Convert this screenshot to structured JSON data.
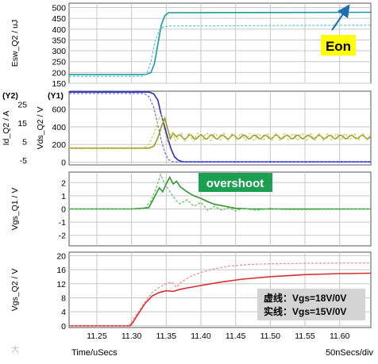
{
  "footer": {
    "x_label": "Time/uSecs",
    "scale": "50nSecs/div",
    "watermark": "大"
  },
  "colors": {
    "grid": "#c8c8c8",
    "teal_solid": "#1a9aa8",
    "teal_dash": "#56c8d0",
    "olive_solid": "#9c9c1e",
    "olive_dash": "#c8c860",
    "blue_solid": "#2b2bd0",
    "blue_dash": "#6a6ae0",
    "green_solid": "#2f9a2f",
    "green_dash": "#5cc05c",
    "red_solid": "#d83030",
    "red_dash": "#ef8a8a",
    "eon_bg": "#ffff00",
    "overshoot_bg": "#1aa050",
    "legend_bg": "#d4d4d4"
  },
  "annotations": {
    "eon": "Eon",
    "overshoot": "overshoot",
    "legend_line1": "虚线：Vgs=18V/0V",
    "legend_line2": "实线：Vgs=15V/0V"
  },
  "chart_data": [
    {
      "type": "line",
      "ylabel": "Esw_Q2 / uJ",
      "ylim": [
        150,
        520
      ],
      "yticks": [
        150,
        200,
        250,
        300,
        350,
        400,
        450,
        500
      ],
      "xlim": [
        11.21,
        11.645
      ],
      "xticks": [
        11.25,
        11.3,
        11.35,
        11.4,
        11.45,
        11.5,
        11.55,
        11.6
      ],
      "grid": true,
      "series": [
        {
          "style": "solid",
          "color": "teal_solid",
          "points": [
            [
              11.21,
              190
            ],
            [
              11.32,
              190
            ],
            [
              11.328,
              200
            ],
            [
              11.333,
              240
            ],
            [
              11.338,
              330
            ],
            [
              11.343,
              420
            ],
            [
              11.348,
              462
            ],
            [
              11.353,
              476
            ],
            [
              11.645,
              478
            ]
          ]
        },
        {
          "style": "dashed",
          "color": "teal_dash",
          "points": [
            [
              11.21,
              182
            ],
            [
              11.315,
              182
            ],
            [
              11.322,
              195
            ],
            [
              11.328,
              250
            ],
            [
              11.334,
              345
            ],
            [
              11.34,
              395
            ],
            [
              11.346,
              410
            ],
            [
              11.355,
              415
            ],
            [
              11.645,
              418
            ]
          ]
        }
      ]
    },
    {
      "type": "line",
      "ylabel_left": "Id_Q2 / A",
      "ylabel_right": "Vds_Q2 / V",
      "axis_tag_left": "(Y2)",
      "axis_tag_right": "(Y1)",
      "y2lim": [
        -7.5,
        32
      ],
      "y2ticks": [
        -5,
        5,
        15,
        25
      ],
      "ylim": [
        -30,
        800
      ],
      "yticks": [
        0,
        200,
        400,
        600
      ],
      "xlim": [
        11.21,
        11.645
      ],
      "xticks": [
        11.25,
        11.3,
        11.35,
        11.4,
        11.45,
        11.5,
        11.55,
        11.6
      ],
      "grid": true,
      "series": [
        {
          "name": "Vds solid",
          "style": "solid",
          "color": "blue_solid",
          "axis": "y1",
          "points": [
            [
              11.21,
              790
            ],
            [
              11.325,
              790
            ],
            [
              11.332,
              770
            ],
            [
              11.338,
              700
            ],
            [
              11.342,
              560
            ],
            [
              11.347,
              420
            ],
            [
              11.352,
              280
            ],
            [
              11.357,
              150
            ],
            [
              11.362,
              60
            ],
            [
              11.368,
              20
            ],
            [
              11.375,
              5
            ],
            [
              11.645,
              5
            ]
          ]
        },
        {
          "name": "Vds dashed",
          "style": "dashed",
          "color": "blue_dash",
          "axis": "y1",
          "points": [
            [
              11.21,
              775
            ],
            [
              11.318,
              775
            ],
            [
              11.325,
              740
            ],
            [
              11.332,
              620
            ],
            [
              11.338,
              420
            ],
            [
              11.343,
              240
            ],
            [
              11.348,
              110
            ],
            [
              11.353,
              30
            ],
            [
              11.36,
              5
            ],
            [
              11.645,
              5
            ]
          ]
        },
        {
          "name": "Id solid",
          "style": "solid",
          "color": "olive_solid",
          "axis": "y2",
          "osc": {
            "start": 11.365,
            "center": 7.5,
            "amp": 1.2,
            "period": 0.0155
          },
          "points": [
            [
              11.21,
              1.5
            ],
            [
              11.325,
              1.5
            ],
            [
              11.332,
              2.5
            ],
            [
              11.338,
              7
            ],
            [
              11.343,
              13
            ],
            [
              11.348,
              17.5
            ],
            [
              11.352,
              12
            ],
            [
              11.356,
              6.5
            ],
            [
              11.36,
              9.5
            ],
            [
              11.365,
              7.5
            ]
          ]
        },
        {
          "name": "Id dashed",
          "style": "dashed",
          "color": "olive_dash",
          "axis": "y2",
          "osc": {
            "start": 11.355,
            "center": 7.5,
            "amp": 2.3,
            "period": 0.0125
          },
          "points": [
            [
              11.21,
              1.8
            ],
            [
              11.318,
              1.8
            ],
            [
              11.325,
              3.5
            ],
            [
              11.332,
              9
            ],
            [
              11.338,
              16
            ],
            [
              11.343,
              19.5
            ],
            [
              11.348,
              10
            ],
            [
              11.352,
              5
            ],
            [
              11.355,
              7.5
            ]
          ]
        }
      ]
    },
    {
      "type": "line",
      "ylabel": "Vgs_Q1 / V",
      "ylim": [
        -2.8,
        2.8
      ],
      "yticks": [
        -2,
        -1,
        0,
        1,
        2
      ],
      "xlim": [
        11.21,
        11.645
      ],
      "xticks": [
        11.25,
        11.3,
        11.35,
        11.4,
        11.45,
        11.5,
        11.55,
        11.6
      ],
      "grid": true,
      "series": [
        {
          "style": "solid",
          "color": "green_solid",
          "points": [
            [
              11.21,
              0
            ],
            [
              11.3,
              0
            ],
            [
              11.315,
              0.05
            ],
            [
              11.325,
              0.1
            ],
            [
              11.333,
              0.9
            ],
            [
              11.34,
              1.6
            ],
            [
              11.345,
              1.3
            ],
            [
              11.35,
              1.9
            ],
            [
              11.355,
              2.4
            ],
            [
              11.36,
              1.9
            ],
            [
              11.365,
              2.1
            ],
            [
              11.37,
              1.7
            ],
            [
              11.375,
              1.5
            ],
            [
              11.38,
              1.3
            ],
            [
              11.39,
              1.0
            ],
            [
              11.4,
              0.8
            ],
            [
              11.41,
              0.55
            ],
            [
              11.42,
              0.35
            ],
            [
              11.43,
              0.25
            ],
            [
              11.44,
              0.15
            ],
            [
              11.45,
              0.05
            ],
            [
              11.47,
              0
            ],
            [
              11.645,
              0
            ]
          ]
        },
        {
          "style": "dashed",
          "color": "green_dash",
          "points": [
            [
              11.21,
              0
            ],
            [
              11.31,
              0
            ],
            [
              11.32,
              0.1
            ],
            [
              11.328,
              0.6
            ],
            [
              11.335,
              1.5
            ],
            [
              11.342,
              2.6
            ],
            [
              11.347,
              2.0
            ],
            [
              11.352,
              1.6
            ],
            [
              11.358,
              1.1
            ],
            [
              11.365,
              0.6
            ],
            [
              11.37,
              0.4
            ],
            [
              11.38,
              0.7
            ],
            [
              11.39,
              0.2
            ],
            [
              11.4,
              0.5
            ],
            [
              11.41,
              -0.1
            ],
            [
              11.42,
              0.2
            ],
            [
              11.43,
              -0.1
            ],
            [
              11.44,
              0.1
            ],
            [
              11.45,
              -0.15
            ],
            [
              11.46,
              0.05
            ],
            [
              11.48,
              -0.1
            ],
            [
              11.5,
              0.05
            ],
            [
              11.52,
              -0.05
            ],
            [
              11.545,
              -0.05
            ],
            [
              11.645,
              0
            ]
          ]
        }
      ]
    },
    {
      "type": "line",
      "ylabel": "Vgs_Q2 / V",
      "ylim": [
        -0.5,
        21
      ],
      "yticks": [
        0,
        4,
        8,
        12,
        16,
        20
      ],
      "xlim": [
        11.21,
        11.645
      ],
      "xticks": [
        11.25,
        11.3,
        11.35,
        11.4,
        11.45,
        11.5,
        11.55,
        11.6
      ],
      "xticklabels": [
        "11.25",
        "11.30",
        "11.35",
        "11.40",
        "11.45",
        "11.50",
        "11.55",
        "11.60"
      ],
      "grid": true,
      "series": [
        {
          "style": "solid",
          "color": "red_solid",
          "points": [
            [
              11.21,
              0
            ],
            [
              11.298,
              0
            ],
            [
              11.302,
              1
            ],
            [
              11.31,
              3.5
            ],
            [
              11.32,
              6.5
            ],
            [
              11.33,
              8.5
            ],
            [
              11.34,
              9.5
            ],
            [
              11.35,
              10
            ],
            [
              11.36,
              9.8
            ],
            [
              11.37,
              10.4
            ],
            [
              11.38,
              10.8
            ],
            [
              11.4,
              11.5
            ],
            [
              11.43,
              12.5
            ],
            [
              11.46,
              13.3
            ],
            [
              11.5,
              14
            ],
            [
              11.55,
              14.6
            ],
            [
              11.6,
              14.9
            ],
            [
              11.645,
              15
            ]
          ]
        },
        {
          "style": "dashed",
          "color": "red_dash",
          "points": [
            [
              11.21,
              0
            ],
            [
              11.296,
              0
            ],
            [
              11.3,
              1.2
            ],
            [
              11.31,
              4
            ],
            [
              11.32,
              7
            ],
            [
              11.33,
              9.5
            ],
            [
              11.34,
              11
            ],
            [
              11.35,
              12
            ],
            [
              11.358,
              12.5
            ],
            [
              11.365,
              11
            ],
            [
              11.372,
              12.5
            ],
            [
              11.38,
              13.5
            ],
            [
              11.39,
              14.5
            ],
            [
              11.4,
              15.2
            ],
            [
              11.42,
              16.3
            ],
            [
              11.44,
              17
            ],
            [
              11.47,
              17.5
            ],
            [
              11.5,
              17.7
            ],
            [
              11.55,
              17.8
            ],
            [
              11.6,
              17.9
            ],
            [
              11.645,
              17.9
            ]
          ]
        }
      ]
    }
  ]
}
